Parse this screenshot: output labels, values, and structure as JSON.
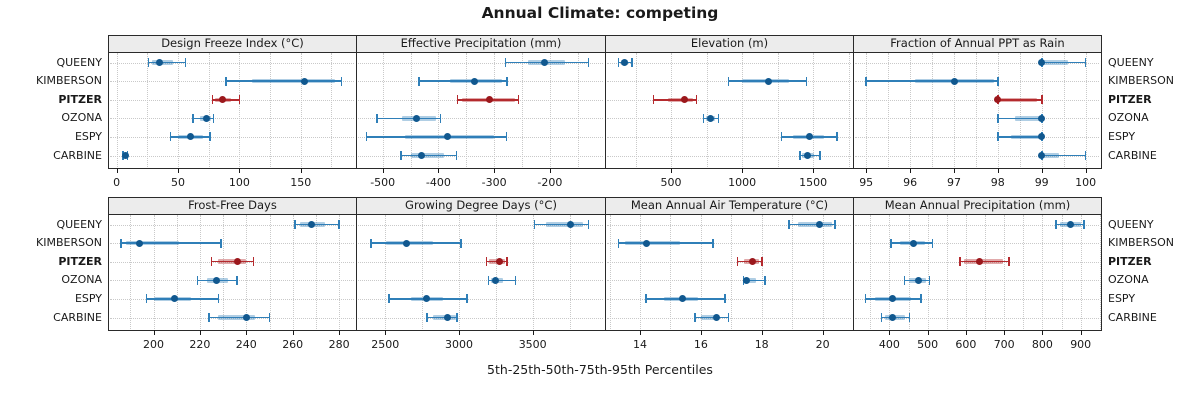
{
  "title": "Annual Climate: competing",
  "caption": "5th-25th-50th-75th-95th Percentiles",
  "stations": [
    "QUEENY",
    "KIMBERSON",
    "PITZER",
    "OZONA",
    "ESPY",
    "CARBINE"
  ],
  "highlight_station": "PITZER",
  "colors": {
    "blue_line": "#2f7fb8",
    "blue_band": "rgba(47,127,184,0.38)",
    "blue_dot": "#11588f",
    "red_line": "#b52a2e",
    "red_band": "rgba(181,42,46,0.40)",
    "red_dot": "#9b181c",
    "strip_bg": "#ececec",
    "grid": "#c9c9c9",
    "border": "#2a2a2a"
  },
  "chart_data": {
    "type": "scatter",
    "subtype": "trellis-percentile-dotplot",
    "note": "Each series value array is [p5, p25, p50, p75, p95]; dot = median, band = 25th-75th, whisker = 5th-95th",
    "legend_position": "none",
    "grid": "dotted, minor at half-tick intervals",
    "panels": [
      {
        "title": "Design Freeze Index (°C)",
        "row": 0,
        "col": 0,
        "xlim": [
          -7,
          195
        ],
        "ticks": [
          0,
          50,
          100,
          150
        ],
        "tick_labels": [
          "0",
          "50",
          "100",
          "150"
        ],
        "series": {
          "QUEENY": [
            26,
            29,
            35,
            46,
            56
          ],
          "KIMBERSON": [
            89,
            110,
            153,
            178,
            183
          ],
          "PITZER": [
            78,
            80,
            86,
            93,
            100
          ],
          "OZONA": [
            62,
            68,
            73,
            77,
            79
          ],
          "ESPY": [
            44,
            50,
            60,
            70,
            76
          ],
          "CARBINE": [
            5,
            6,
            7,
            8,
            9
          ]
        }
      },
      {
        "title": "Effective Precipitation (mm)",
        "row": 0,
        "col": 1,
        "xlim": [
          -548,
          -101
        ],
        "ticks": [
          -500,
          -400,
          -300,
          -200
        ],
        "tick_labels": [
          "-500",
          "-400",
          "-300",
          "-200"
        ],
        "series": {
          "QUEENY": [
            -280,
            -240,
            -209,
            -173,
            -131
          ],
          "KIMBERSON": [
            -435,
            -380,
            -336,
            -285,
            -277
          ],
          "PITZER": [
            -366,
            -358,
            -308,
            -262,
            -256
          ],
          "OZONA": [
            -510,
            -465,
            -440,
            -405,
            -396
          ],
          "ESPY": [
            -529,
            -460,
            -384,
            -300,
            -278
          ],
          "CARBINE": [
            -467,
            -450,
            -430,
            -390,
            -368
          ]
        }
      },
      {
        "title": "Elevation (m)",
        "row": 0,
        "col": 2,
        "xlim": [
          35,
          1781
        ],
        "ticks": [
          500,
          1000,
          1500
        ],
        "tick_labels": [
          "500",
          "1000",
          "1500"
        ],
        "series": {
          "QUEENY": [
            130,
            148,
            171,
            200,
            225
          ],
          "KIMBERSON": [
            903,
            1000,
            1185,
            1330,
            1455
          ],
          "PITZER": [
            375,
            480,
            594,
            655,
            680
          ],
          "OZONA": [
            727,
            745,
            775,
            810,
            833
          ],
          "ESPY": [
            1279,
            1360,
            1474,
            1580,
            1667
          ],
          "CARBINE": [
            1408,
            1425,
            1460,
            1510,
            1549
          ]
        }
      },
      {
        "title": "Fraction of Annual PPT as Rain",
        "row": 0,
        "col": 3,
        "xlim": [
          94.7,
          100.35
        ],
        "ticks": [
          95,
          96,
          97,
          98,
          99,
          100
        ],
        "tick_labels": [
          "95",
          "96",
          "97",
          "98",
          "99",
          "100"
        ],
        "series": {
          "QUEENY": [
            99,
            99,
            99,
            99.6,
            100
          ],
          "KIMBERSON": [
            95,
            96.1,
            97,
            97.9,
            98
          ],
          "PITZER": [
            98,
            98,
            98,
            98.9,
            99
          ],
          "OZONA": [
            98,
            98.4,
            99,
            99,
            99
          ],
          "ESPY": [
            98,
            98.3,
            99,
            99,
            99
          ],
          "CARBINE": [
            99,
            99,
            99,
            99.4,
            100
          ]
        }
      },
      {
        "title": "Frost-Free Days",
        "row": 1,
        "col": 0,
        "xlim": [
          180.4,
          287.3
        ],
        "ticks": [
          200,
          220,
          240,
          260,
          280
        ],
        "tick_labels": [
          "200",
          "220",
          "240",
          "260",
          "280"
        ],
        "series": {
          "QUEENY": [
            261,
            263,
            268,
            274,
            280
          ],
          "KIMBERSON": [
            186,
            188,
            194,
            211,
            229
          ],
          "PITZER": [
            225,
            228,
            236,
            240,
            243
          ],
          "OZONA": [
            219,
            223,
            227,
            232,
            236
          ],
          "ESPY": [
            197,
            200,
            209,
            216,
            228
          ],
          "CARBINE": [
            224,
            228,
            240,
            244,
            250
          ]
        }
      },
      {
        "title": "Growing Degree Days (°C)",
        "row": 1,
        "col": 1,
        "xlim": [
          2301,
          3991
        ],
        "ticks": [
          2500,
          3000,
          3500
        ],
        "tick_labels": [
          "2500",
          "3000",
          "3500"
        ],
        "series": {
          "QUEENY": [
            3511,
            3590,
            3756,
            3840,
            3878
          ],
          "KIMBERSON": [
            2403,
            2507,
            2641,
            2822,
            3014
          ],
          "PITZER": [
            3186,
            3205,
            3274,
            3310,
            3324
          ],
          "OZONA": [
            3199,
            3215,
            3247,
            3300,
            3383
          ],
          "ESPY": [
            2523,
            2674,
            2781,
            2894,
            3055
          ],
          "CARBINE": [
            2783,
            2822,
            2924,
            2980,
            2985
          ]
        }
      },
      {
        "title": "Mean Annual Air Temperature (°C)",
        "row": 1,
        "col": 2,
        "xlim": [
          12.85,
          21.0
        ],
        "ticks": [
          14,
          16,
          18,
          20
        ],
        "tick_labels": [
          "14",
          "16",
          "18",
          "20"
        ],
        "series": {
          "QUEENY": [
            18.9,
            19.2,
            19.9,
            20.3,
            20.4
          ],
          "KIMBERSON": [
            13.3,
            13.5,
            14.2,
            15.3,
            16.4
          ],
          "PITZER": [
            17.2,
            17.4,
            17.7,
            17.9,
            18.0
          ],
          "OZONA": [
            17.4,
            17.45,
            17.5,
            17.8,
            18.1
          ],
          "ESPY": [
            14.2,
            14.8,
            15.4,
            15.9,
            16.8
          ],
          "CARBINE": [
            15.8,
            16.0,
            16.5,
            16.6,
            16.9
          ]
        }
      },
      {
        "title": "Mean Annual Precipitation (mm)",
        "row": 1,
        "col": 3,
        "xlim": [
          305,
          953
        ],
        "ticks": [
          400,
          500,
          600,
          700,
          800,
          900
        ],
        "tick_labels": [
          "400",
          "500",
          "600",
          "700",
          "800",
          "900"
        ],
        "series": {
          "QUEENY": [
            835,
            845,
            873,
            901,
            908
          ],
          "KIMBERSON": [
            404,
            427,
            462,
            492,
            512
          ],
          "PITZER": [
            585,
            595,
            636,
            697,
            712
          ],
          "OZONA": [
            440,
            450,
            476,
            495,
            505
          ],
          "ESPY": [
            338,
            362,
            408,
            457,
            482
          ],
          "CARBINE": [
            379,
            388,
            408,
            440,
            453
          ]
        }
      }
    ]
  }
}
